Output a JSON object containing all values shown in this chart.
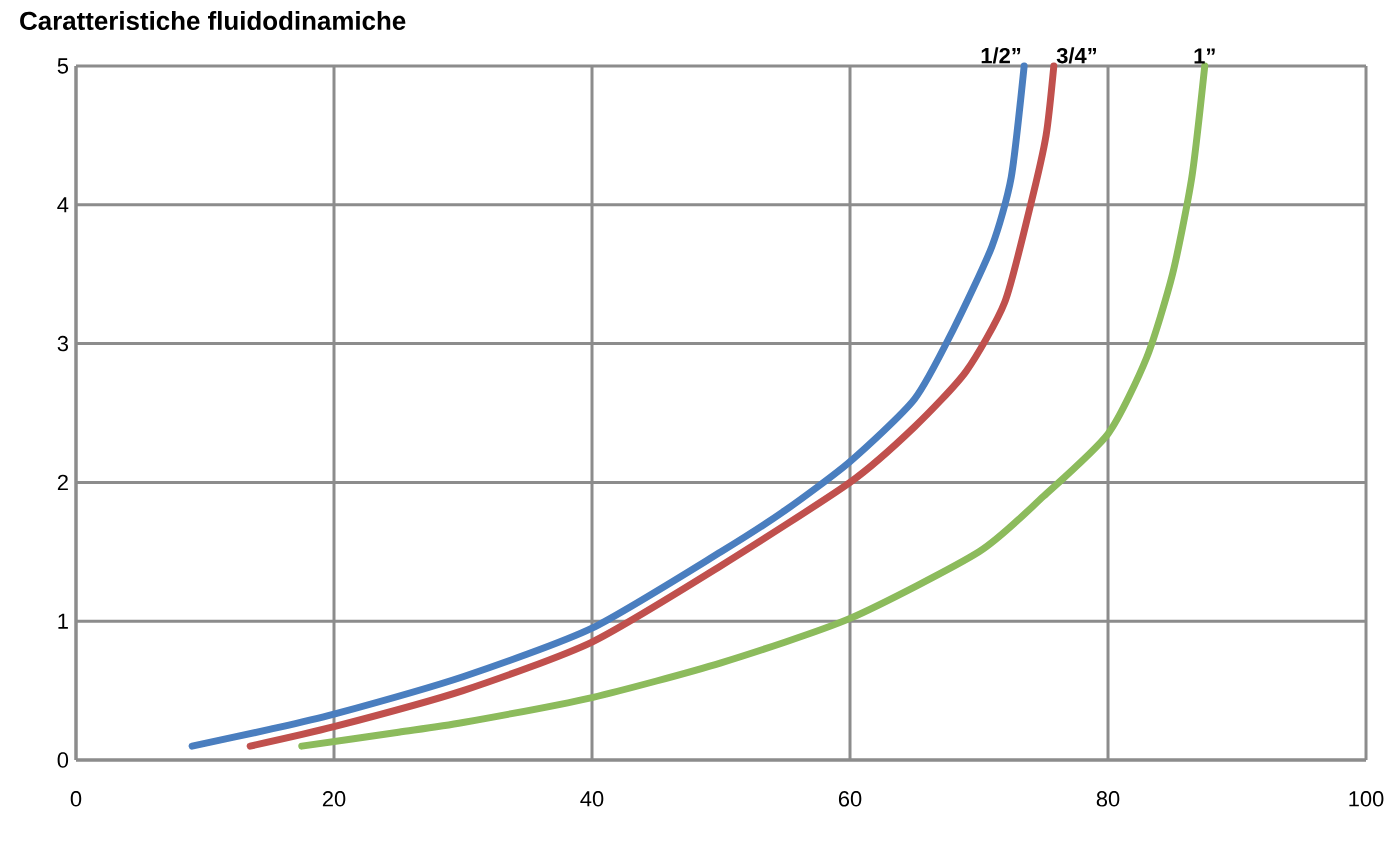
{
  "chart_data": {
    "type": "line",
    "title": "Caratteristiche fluidodinamiche",
    "xlim": [
      0,
      100
    ],
    "ylim": [
      0,
      5
    ],
    "xticks": [
      0,
      20,
      40,
      60,
      80,
      100
    ],
    "yticks": [
      0,
      1,
      2,
      3,
      4,
      5
    ],
    "grid": true,
    "series": [
      {
        "name": "1/2”",
        "color": "#4a7ebf",
        "x": [
          9,
          15,
          20,
          30,
          40,
          50,
          55,
          60,
          65,
          68,
          71,
          72.5,
          73.5
        ],
        "values": [
          0.1,
          0.22,
          0.33,
          0.6,
          0.95,
          1.5,
          1.8,
          2.15,
          2.6,
          3.1,
          3.7,
          4.2,
          5
        ]
      },
      {
        "name": "3/4”",
        "color": "#c0504d",
        "x": [
          13.5,
          20,
          30,
          40,
          50,
          60,
          65,
          69,
          72,
          74,
          75.2,
          75.8
        ],
        "values": [
          0.1,
          0.24,
          0.5,
          0.85,
          1.4,
          2.0,
          2.4,
          2.8,
          3.3,
          4.0,
          4.5,
          5
        ]
      },
      {
        "name": "1”",
        "color": "#8cbb5c",
        "x": [
          17.5,
          25,
          30,
          40,
          50,
          60,
          70,
          75,
          80,
          83,
          85,
          86.5,
          87.5
        ],
        "values": [
          0.1,
          0.2,
          0.27,
          0.45,
          0.7,
          1.02,
          1.5,
          1.9,
          2.35,
          2.9,
          3.5,
          4.2,
          5
        ]
      }
    ]
  }
}
